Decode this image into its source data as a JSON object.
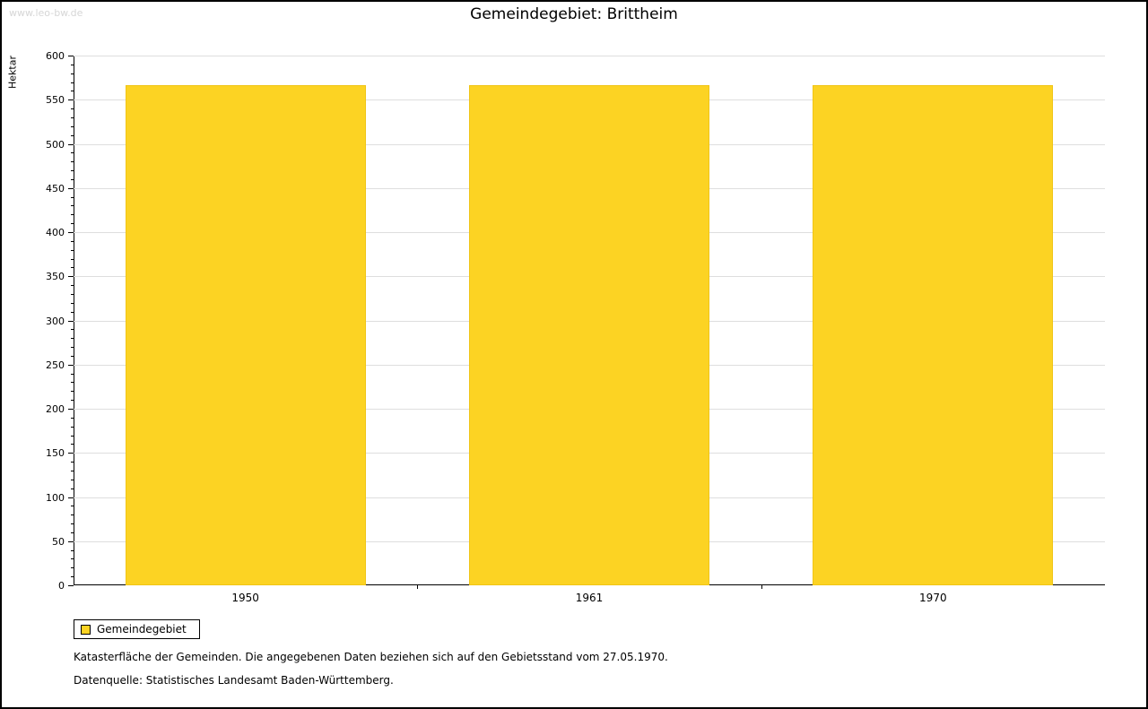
{
  "watermark": "www.leo-bw.de",
  "chart_data": {
    "type": "bar",
    "title": "Gemeindegebiet: Brittheim",
    "ylabel": "Hektar",
    "xlabel": "",
    "categories": [
      "1950",
      "1961",
      "1970"
    ],
    "series": [
      {
        "name": "Gemeindegebiet",
        "values": [
          567,
          567,
          567
        ]
      }
    ],
    "ylim": [
      0,
      600
    ],
    "yticks": {
      "major": 50,
      "minor": 10
    },
    "grid": "horizontal-major",
    "legend_position": "bottom-left",
    "bar_color": "#fcd323",
    "grid_color": "#dedede"
  },
  "legend": {
    "items": [
      {
        "label": "Gemeindegebiet",
        "color": "#fcd323"
      }
    ]
  },
  "footnotes": [
    "Katasterfläche der Gemeinden. Die angegebenen Daten beziehen sich auf den Gebietsstand vom 27.05.1970.",
    "Datenquelle: Statistisches Landesamt Baden-Württemberg."
  ]
}
